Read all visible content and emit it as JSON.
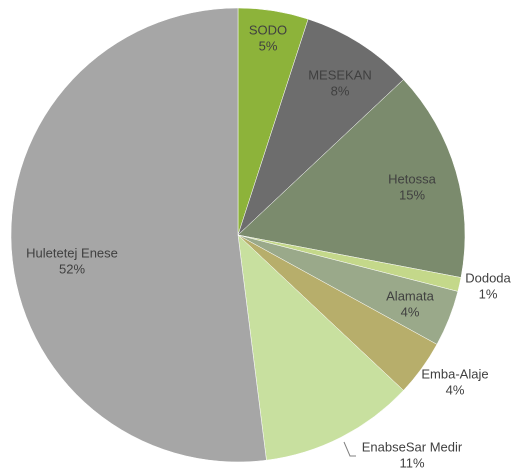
{
  "chart_data": {
    "type": "pie",
    "categories": [
      "SODO",
      "MESEKAN",
      "Hetossa",
      "Dododa",
      "Alamata",
      "Emba-Alaje",
      "EnabseSar Medir",
      "Huletetej Enese"
    ],
    "values": [
      5,
      8,
      15,
      1,
      4,
      4,
      11,
      52
    ],
    "value_labels": [
      "5%",
      "8%",
      "15%",
      "1%",
      "4%",
      "4%",
      "11%",
      "52%"
    ],
    "colors": [
      "#8db33a",
      "#6d6d6d",
      "#7b8b6d",
      "#c4d88a",
      "#9aa98a",
      "#b7ae6b",
      "#c8e09f",
      "#a6a6a6"
    ]
  }
}
